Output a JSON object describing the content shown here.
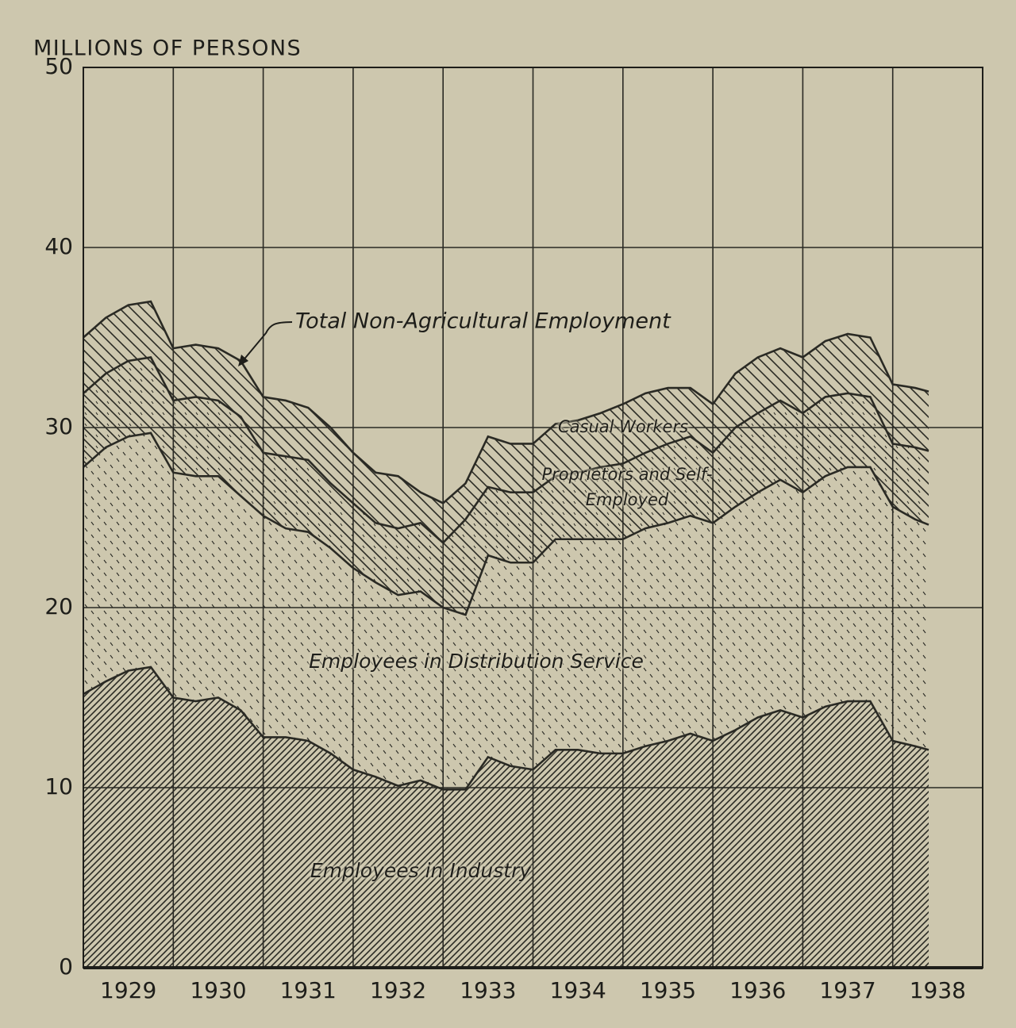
{
  "chart_data": {
    "type": "stacked-area",
    "y_label": "MILLIONS OF PERSONS",
    "annotations": [
      {
        "text": "Total Non-Agricultural Employment"
      }
    ],
    "x": [
      1929,
      1929.25,
      1929.5,
      1929.75,
      1930,
      1930.25,
      1930.5,
      1930.75,
      1931,
      1931.25,
      1931.5,
      1931.75,
      1932,
      1932.25,
      1932.5,
      1932.75,
      1933,
      1933.25,
      1933.5,
      1933.75,
      1934,
      1934.25,
      1934.5,
      1934.75,
      1935,
      1935.25,
      1935.5,
      1935.75,
      1936,
      1936.25,
      1936.5,
      1936.75,
      1937,
      1937.25,
      1937.5,
      1937.75,
      1938,
      1938.25,
      1938.4
    ],
    "series": [
      {
        "name": "Employees in Industry",
        "color": "#2a2a24",
        "pattern": "dense-hatch",
        "values": [
          15.2,
          15.9,
          16.5,
          16.7,
          15.0,
          14.8,
          15.0,
          14.3,
          12.8,
          12.8,
          12.6,
          11.9,
          11.0,
          10.6,
          10.1,
          10.4,
          9.9,
          9.9,
          11.7,
          11.2,
          11.0,
          12.1,
          12.1,
          11.9,
          11.9,
          12.3,
          12.6,
          13.0,
          12.6,
          13.2,
          13.9,
          14.3,
          13.9,
          14.5,
          14.8,
          14.8,
          12.6,
          12.3,
          12.1
        ]
      },
      {
        "name": "Employees in Distribution Service",
        "color": "#2a2a24",
        "pattern": "dashes",
        "values": [
          12.6,
          13.0,
          13.0,
          13.0,
          12.5,
          12.5,
          12.3,
          11.9,
          12.3,
          11.6,
          11.6,
          11.4,
          11.2,
          10.8,
          10.6,
          10.5,
          10.1,
          9.7,
          11.2,
          11.3,
          11.5,
          11.7,
          11.7,
          11.9,
          11.9,
          12.1,
          12.1,
          12.1,
          12.1,
          12.4,
          12.5,
          12.8,
          12.5,
          12.8,
          13.0,
          13.0,
          13.0,
          12.6,
          12.5
        ]
      },
      {
        "name": "Proprietors and Self-Employed",
        "color": "#2a2a24",
        "pattern": "dashed-hatch",
        "values": [
          4.1,
          4.1,
          4.2,
          4.2,
          4.0,
          4.4,
          4.2,
          4.4,
          3.5,
          4.0,
          4.0,
          3.6,
          3.6,
          3.3,
          3.7,
          3.8,
          3.6,
          5.3,
          3.8,
          3.9,
          3.9,
          3.5,
          3.7,
          4.0,
          4.2,
          4.2,
          4.4,
          4.4,
          3.9,
          4.4,
          4.4,
          4.4,
          4.4,
          4.4,
          4.1,
          3.9,
          3.5,
          4.0,
          4.1
        ]
      },
      {
        "name": "Casual Workers",
        "color": "#2a2a24",
        "pattern": "hatch",
        "values": [
          3.1,
          3.1,
          3.1,
          3.1,
          2.9,
          2.9,
          2.9,
          3.1,
          3.1,
          3.1,
          2.9,
          3.1,
          2.8,
          2.8,
          2.9,
          1.7,
          2.2,
          2.0,
          2.8,
          2.7,
          2.7,
          2.9,
          2.9,
          3.0,
          3.3,
          3.3,
          3.1,
          2.7,
          2.7,
          3.0,
          3.1,
          2.9,
          3.1,
          3.1,
          3.3,
          3.3,
          3.3,
          3.3,
          3.3
        ]
      }
    ],
    "xlim": [
      1929,
      1939
    ],
    "xticks": [
      {
        "value": 1929.5,
        "label": "1929"
      },
      {
        "value": 1930.5,
        "label": "1930"
      },
      {
        "value": 1931.5,
        "label": "1931"
      },
      {
        "value": 1932.5,
        "label": "1932"
      },
      {
        "value": 1933.5,
        "label": "1933"
      },
      {
        "value": 1934.5,
        "label": "1934"
      },
      {
        "value": 1935.5,
        "label": "1935"
      },
      {
        "value": 1936.5,
        "label": "1936"
      },
      {
        "value": 1937.5,
        "label": "1937"
      },
      {
        "value": 1938.5,
        "label": "1938"
      }
    ],
    "ylim": [
      0,
      50
    ],
    "yticks": [
      0,
      10,
      20,
      30,
      40,
      50
    ],
    "grid": true
  }
}
